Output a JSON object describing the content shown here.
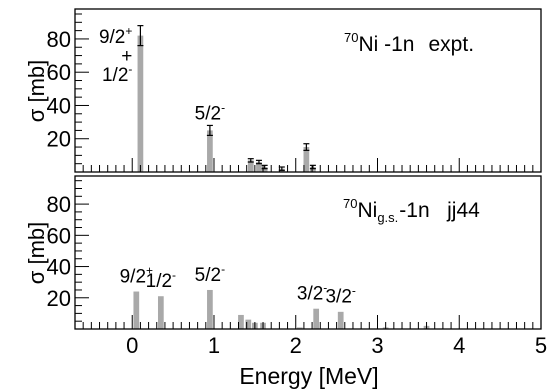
{
  "chart_data": [
    {
      "type": "bar",
      "panel": "top",
      "annotation": {
        "prefix": "70",
        "main": "Ni -1n",
        "sub": "",
        "suffix": "expt."
      },
      "ylabel": "σ [mb]",
      "xlim": [
        -0.7,
        5
      ],
      "ylim": [
        0,
        98
      ],
      "yticks": [
        20,
        40,
        60,
        80
      ],
      "bar_width": 0.07,
      "x": [
        0.1,
        0.95,
        1.45,
        1.55,
        1.62,
        1.83,
        2.13,
        2.21
      ],
      "values": [
        82,
        25,
        7,
        6,
        3,
        2,
        15,
        3
      ],
      "errors": [
        6,
        3,
        1,
        1,
        1,
        1,
        2,
        1
      ],
      "labels": [
        {
          "lines": [
            {
              "base": "9/2",
              "sup": "+"
            },
            {
              "base": "+",
              "sup": ""
            },
            {
              "base": "1/2",
              "sup": "-"
            }
          ],
          "x": 0.1,
          "y": 80,
          "side": "left"
        },
        {
          "lines": [
            {
              "base": "5/2",
              "sup": "-"
            }
          ],
          "x": 0.95,
          "y": 28,
          "side": "center"
        }
      ]
    },
    {
      "type": "bar",
      "panel": "bottom",
      "annotation": {
        "prefix": "70",
        "main": "Ni",
        "sub": "g.s.",
        "suffix": "-1n   jj44"
      },
      "ylabel": "σ [mb]",
      "xlabel": "Energy [MeV]",
      "xlim": [
        -0.7,
        5
      ],
      "ylim": [
        0,
        98
      ],
      "yticks": [
        20,
        40,
        60,
        80
      ],
      "xticks": [
        0,
        1,
        2,
        3,
        4,
        5
      ],
      "bar_width": 0.07,
      "x": [
        0.05,
        0.35,
        0.95,
        1.33,
        1.42,
        1.5,
        1.6,
        2.05,
        2.25,
        2.55,
        3.1,
        3.6
      ],
      "values": [
        24,
        21,
        25,
        9,
        6,
        4,
        4,
        1,
        13,
        11,
        1,
        2
      ],
      "labels": [
        {
          "lines": [
            {
              "base": "9/2",
              "sup": "+"
            }
          ],
          "x": 0.05,
          "y": 26,
          "side": "center"
        },
        {
          "lines": [
            {
              "base": "1/2",
              "sup": "-"
            }
          ],
          "x": 0.35,
          "y": 23,
          "side": "center"
        },
        {
          "lines": [
            {
              "base": "5/2",
              "sup": "-"
            }
          ],
          "x": 0.95,
          "y": 27,
          "side": "center"
        },
        {
          "lines": [
            {
              "base": "3/2",
              "sup": "-"
            }
          ],
          "x": 2.2,
          "y": 15,
          "side": "center"
        },
        {
          "lines": [
            {
              "base": "3/2",
              "sup": "-"
            }
          ],
          "x": 2.55,
          "y": 13,
          "side": "center"
        }
      ]
    }
  ]
}
